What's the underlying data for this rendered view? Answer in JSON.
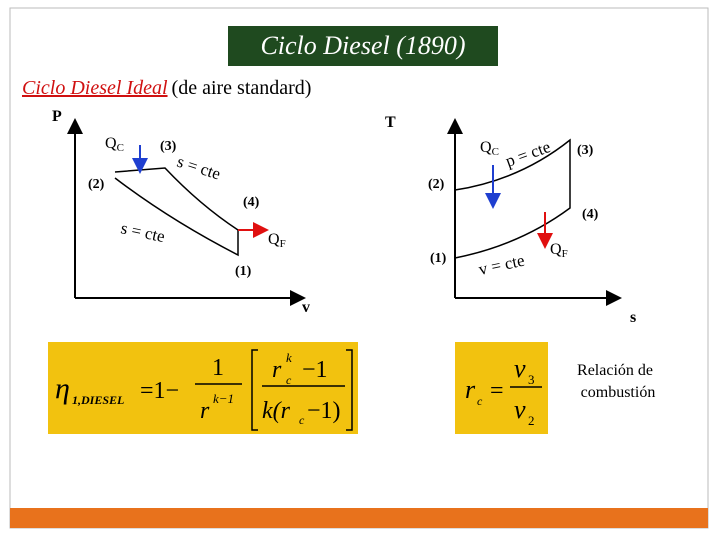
{
  "title": "Ciclo Diesel (1890)",
  "subtitle": {
    "link": "Ciclo Diesel Ideal",
    "rest": "(de aire standard)"
  },
  "pv_diagram": {
    "y_axis": "P",
    "x_axis": "v",
    "heat_in": "Q",
    "heat_in_sub": "C",
    "heat_out": "Q",
    "heat_out_sub": "F",
    "points": [
      "(1)",
      "(2)",
      "(3)",
      "(4)"
    ],
    "isentropic": "s = cte"
  },
  "ts_diagram": {
    "y_axis": "T",
    "x_axis": "s",
    "heat_in": "Q",
    "heat_in_sub": "C",
    "heat_out": "Q",
    "heat_out_sub": "F",
    "points": [
      "(1)",
      "(2)",
      "(3)",
      "(4)"
    ],
    "isobaric": "p = cte",
    "isochoric": "v = cte"
  },
  "efficiency_formula": {
    "eta": "η",
    "eta_sub": "1,DIESEL",
    "equals": "=1−",
    "one": "1",
    "r": "r",
    "r_exp": "k−1",
    "rc": "r",
    "rc_sub": "c",
    "rc_exp": "k",
    "minus_one": "−1",
    "den_start": "k(r",
    "den_sub": "c",
    "den_end": "−1)"
  },
  "rc_formula": {
    "r": "r",
    "r_sub": "c",
    "equals": "=",
    "v_num": "v",
    "v_num_sub": "3",
    "v_den": "v",
    "v_den_sub": "2"
  },
  "note": [
    "Relación de",
    "combustión"
  ]
}
